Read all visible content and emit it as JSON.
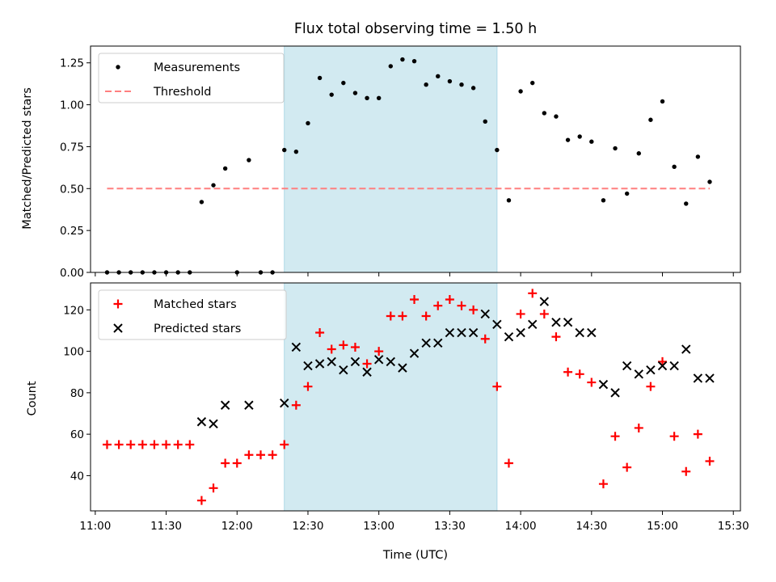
{
  "title": "Flux total observing time = 1.50 h",
  "colors": {
    "measurement": "#000000",
    "threshold": "#ff7f7f",
    "matched": "#ff0000",
    "predicted": "#000000",
    "highlight": "#add8e6"
  },
  "chart_data": [
    {
      "type": "scatter",
      "panel": "top",
      "ylabel": "Matched/Predicted stars",
      "xlim": [
        "10:58",
        "15:33"
      ],
      "ylim": [
        0,
        1.35
      ],
      "yticks": [
        0.0,
        0.25,
        0.5,
        0.75,
        1.0,
        1.25
      ],
      "ytick_labels": [
        "0.00",
        "0.25",
        "0.50",
        "0.75",
        "1.00",
        "1.25"
      ],
      "x_tick_labels_shown": false,
      "legend_position": "top-left",
      "highlight_span": [
        "12:20",
        "13:50"
      ],
      "series": [
        {
          "name": "Measurements",
          "marker": "dot",
          "points": [
            [
              "11:05",
              0
            ],
            [
              "11:10",
              0
            ],
            [
              "11:15",
              0
            ],
            [
              "11:20",
              0
            ],
            [
              "11:25",
              0
            ],
            [
              "11:30",
              0
            ],
            [
              "11:35",
              0
            ],
            [
              "11:40",
              0
            ],
            [
              "11:45",
              0.42
            ],
            [
              "11:50",
              0.52
            ],
            [
              "11:55",
              0.62
            ],
            [
              "12:00",
              0
            ],
            [
              "12:05",
              0.67
            ],
            [
              "12:10",
              0
            ],
            [
              "12:15",
              0
            ],
            [
              "12:20",
              0.73
            ],
            [
              "12:25",
              0.72
            ],
            [
              "12:30",
              0.89
            ],
            [
              "12:35",
              1.16
            ],
            [
              "12:40",
              1.06
            ],
            [
              "12:45",
              1.13
            ],
            [
              "12:50",
              1.07
            ],
            [
              "12:55",
              1.04
            ],
            [
              "13:00",
              1.04
            ],
            [
              "13:05",
              1.23
            ],
            [
              "13:10",
              1.27
            ],
            [
              "13:15",
              1.26
            ],
            [
              "13:20",
              1.12
            ],
            [
              "13:25",
              1.17
            ],
            [
              "13:30",
              1.14
            ],
            [
              "13:35",
              1.12
            ],
            [
              "13:40",
              1.1
            ],
            [
              "13:45",
              0.9
            ],
            [
              "13:50",
              0.73
            ],
            [
              "13:55",
              0.43
            ],
            [
              "14:00",
              1.08
            ],
            [
              "14:05",
              1.13
            ],
            [
              "14:10",
              0.95
            ],
            [
              "14:15",
              0.93
            ],
            [
              "14:20",
              0.79
            ],
            [
              "14:25",
              0.81
            ],
            [
              "14:30",
              0.78
            ],
            [
              "14:35",
              0.43
            ],
            [
              "14:40",
              0.74
            ],
            [
              "14:45",
              0.47
            ],
            [
              "14:50",
              0.71
            ],
            [
              "14:55",
              0.91
            ],
            [
              "15:00",
              1.02
            ],
            [
              "15:05",
              0.63
            ],
            [
              "15:10",
              0.41
            ],
            [
              "15:15",
              0.69
            ],
            [
              "15:20",
              0.54
            ]
          ]
        },
        {
          "name": "Threshold",
          "marker": "dashed-line",
          "points": [
            [
              "11:05",
              0.5
            ],
            [
              "15:20",
              0.5
            ]
          ]
        }
      ]
    },
    {
      "type": "scatter",
      "panel": "bottom",
      "xlabel": "Time (UTC)",
      "ylabel": "Count",
      "xlim": [
        "10:58",
        "15:33"
      ],
      "ylim": [
        23,
        133
      ],
      "xticks": [
        "11:00",
        "11:30",
        "12:00",
        "12:30",
        "13:00",
        "13:30",
        "14:00",
        "14:30",
        "15:00",
        "15:30"
      ],
      "yticks": [
        40,
        60,
        80,
        100,
        120
      ],
      "legend_position": "top-left",
      "highlight_span": [
        "12:20",
        "13:50"
      ],
      "series": [
        {
          "name": "Matched stars",
          "marker": "plus",
          "points": [
            [
              "11:05",
              55
            ],
            [
              "11:10",
              55
            ],
            [
              "11:15",
              55
            ],
            [
              "11:20",
              55
            ],
            [
              "11:25",
              55
            ],
            [
              "11:30",
              55
            ],
            [
              "11:35",
              55
            ],
            [
              "11:40",
              55
            ],
            [
              "11:45",
              28
            ],
            [
              "11:50",
              34
            ],
            [
              "11:55",
              46
            ],
            [
              "12:00",
              46
            ],
            [
              "12:05",
              50
            ],
            [
              "12:10",
              50
            ],
            [
              "12:15",
              50
            ],
            [
              "12:20",
              55
            ],
            [
              "12:25",
              74
            ],
            [
              "12:30",
              83
            ],
            [
              "12:35",
              109
            ],
            [
              "12:40",
              101
            ],
            [
              "12:45",
              103
            ],
            [
              "12:50",
              102
            ],
            [
              "12:55",
              94
            ],
            [
              "13:00",
              100
            ],
            [
              "13:05",
              117
            ],
            [
              "13:10",
              117
            ],
            [
              "13:15",
              125
            ],
            [
              "13:20",
              117
            ],
            [
              "13:25",
              122
            ],
            [
              "13:30",
              125
            ],
            [
              "13:35",
              122
            ],
            [
              "13:40",
              120
            ],
            [
              "13:45",
              106
            ],
            [
              "13:50",
              83
            ],
            [
              "13:55",
              46
            ],
            [
              "14:00",
              118
            ],
            [
              "14:05",
              128
            ],
            [
              "14:10",
              118
            ],
            [
              "14:15",
              107
            ],
            [
              "14:20",
              90
            ],
            [
              "14:25",
              89
            ],
            [
              "14:30",
              85
            ],
            [
              "14:35",
              36
            ],
            [
              "14:40",
              59
            ],
            [
              "14:45",
              44
            ],
            [
              "14:50",
              63
            ],
            [
              "14:55",
              83
            ],
            [
              "15:00",
              95
            ],
            [
              "15:05",
              59
            ],
            [
              "15:10",
              42
            ],
            [
              "15:15",
              60
            ],
            [
              "15:20",
              47
            ]
          ]
        },
        {
          "name": "Predicted stars",
          "marker": "x",
          "points": [
            [
              "11:45",
              66
            ],
            [
              "11:50",
              65
            ],
            [
              "11:55",
              74
            ],
            [
              "12:05",
              74
            ],
            [
              "12:20",
              75
            ],
            [
              "12:25",
              102
            ],
            [
              "12:30",
              93
            ],
            [
              "12:35",
              94
            ],
            [
              "12:40",
              95
            ],
            [
              "12:45",
              91
            ],
            [
              "12:50",
              95
            ],
            [
              "12:55",
              90
            ],
            [
              "13:00",
              96
            ],
            [
              "13:05",
              95
            ],
            [
              "13:10",
              92
            ],
            [
              "13:15",
              99
            ],
            [
              "13:20",
              104
            ],
            [
              "13:25",
              104
            ],
            [
              "13:30",
              109
            ],
            [
              "13:35",
              109
            ],
            [
              "13:40",
              109
            ],
            [
              "13:45",
              118
            ],
            [
              "13:50",
              113
            ],
            [
              "13:55",
              107
            ],
            [
              "14:00",
              109
            ],
            [
              "14:05",
              113
            ],
            [
              "14:10",
              124
            ],
            [
              "14:15",
              114
            ],
            [
              "14:20",
              114
            ],
            [
              "14:25",
              109
            ],
            [
              "14:30",
              109
            ],
            [
              "14:35",
              84
            ],
            [
              "14:40",
              80
            ],
            [
              "14:45",
              93
            ],
            [
              "14:50",
              89
            ],
            [
              "14:55",
              91
            ],
            [
              "15:00",
              93
            ],
            [
              "15:05",
              93
            ],
            [
              "15:10",
              101
            ],
            [
              "15:15",
              87
            ],
            [
              "15:20",
              87
            ]
          ]
        }
      ]
    }
  ]
}
